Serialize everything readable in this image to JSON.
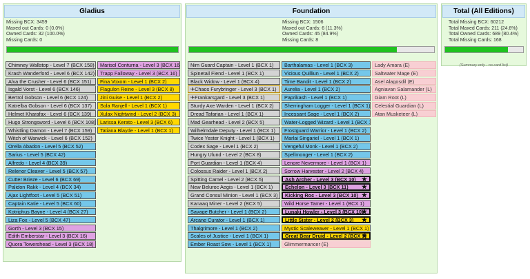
{
  "gladius": {
    "title": "Gladius",
    "stats": [
      "Missing BCX: 3459",
      "Maxed out Cards: 0 (0.0%)",
      "Owned Cards: 32 (100.0%)",
      "Missing Cards: 0"
    ],
    "progress": 1.0,
    "col1": [
      {
        "label": "Chimney Wallstop - Level 7 (BCX 158)",
        "c": "gray"
      },
      {
        "label": "Krash Wanderford - Level 6 (BCX 142)",
        "c": "gray"
      },
      {
        "label": "Alva the Crusher - Level 6 (BCX 151)",
        "c": "gray"
      },
      {
        "label": "Isgald Vorst - Level 6 (BCX 146)",
        "c": "gray"
      },
      {
        "label": "Bertrol Gobson - Level 6 (BCX 124)",
        "c": "gray"
      },
      {
        "label": "Katrelba Gobson - Level 6 (BCX 137)",
        "c": "gray"
      },
      {
        "label": "Helmet Kharafax - Level 6 (BCX 139)",
        "c": "gray"
      },
      {
        "label": "Hugo Strongsword - Level 6 (BCX 108)",
        "c": "gray"
      },
      {
        "label": "Whistling Damon - Level 7 (BCX 159)",
        "c": "gray"
      },
      {
        "label": "Witch of Warwick - Level 6 (BCX 152)",
        "c": "gray"
      },
      {
        "label": "Orella Abadon - Level 5 (BCX 52)",
        "c": "blue"
      },
      {
        "label": "Sarius - Level 5 (BCX 42)",
        "c": "blue"
      },
      {
        "label": "Alfredo - Level 4 (BCX 39)",
        "c": "blue"
      },
      {
        "label": "Relenor Cleaver - Level 5 (BCX 57)",
        "c": "blue"
      },
      {
        "label": "Cutter Brieze - Level 6 (BCX 69)",
        "c": "blue"
      },
      {
        "label": "Palidon Rakk - Level 4 (BCX 34)",
        "c": "blue"
      },
      {
        "label": "Ajax Lightfoot - Level 5 (BCX 51)",
        "c": "blue"
      },
      {
        "label": "Captain Katie - Level 5 (BCX 60)",
        "c": "blue"
      },
      {
        "label": "Kotriphus Bayne - Level 4 (BCX 27)",
        "c": "blue"
      },
      {
        "label": "Liza Fox - Level 5 (BCX 47)",
        "c": "blue"
      },
      {
        "label": "Gorth - Level 3 (BCX 15)",
        "c": "pink"
      },
      {
        "label": "Edith Emberstar - Level 3 (BCX 16)",
        "c": "pink"
      },
      {
        "label": "Quora Towershead - Level 3 (BCX 18)",
        "c": "pink"
      }
    ],
    "col2": [
      {
        "label": "Marisol Conturna - Level 3 (BCX 16)",
        "c": "pink"
      },
      {
        "label": "Trapp Falloway - Level 3 (BCX 16)",
        "c": "pink"
      },
      {
        "label": "Fina Voxom - Level 1 (BCX 2)",
        "c": "yellow"
      },
      {
        "label": "Flagulon Reine - Level 3 (BCX 8)",
        "c": "yellow"
      },
      {
        "label": "Jini Guise - Level 1 (BCX 2)",
        "c": "yellow"
      },
      {
        "label": "Sola Ranjell - Level 1 (BCX 1)",
        "c": "yellow"
      },
      {
        "label": "Xulax Nightwind - Level 2 (BCX 3)",
        "c": "yellow"
      },
      {
        "label": "Larissa Kerato - Level 3 (BCX 6)",
        "c": "yellow"
      },
      {
        "label": "Tatiana Blayde - Level 1 (BCX 1)",
        "c": "yellow"
      }
    ]
  },
  "foundation": {
    "title": "Foundation",
    "stats": [
      "Missing BCX: 1506",
      "Maxed out Cards: 6 (11.3%)",
      "Owned Cards: 45 (84.9%)",
      "Missing Cards: 8"
    ],
    "progress": 0.849,
    "col1": [
      {
        "label": "Nim Guard Captain - Level 1 (BCX 1)",
        "c": "gray"
      },
      {
        "label": "Spinetail Fiend - Level 1 (BCX 1)",
        "c": "gray"
      },
      {
        "label": "Black Widow - Level 1 (BCX 4)",
        "c": "gray"
      },
      {
        "label": "Chaos Furybringer - Level 3 (BCX 1)",
        "c": "gray",
        "icon": "✈",
        "gold": true
      },
      {
        "label": "Frankarsgard - Level 3 (BCX 1)",
        "c": "gray",
        "icon": "✈",
        "gold": true
      },
      {
        "label": "Sturdy Axe Warden - Level 1 (BCX 2)",
        "c": "gray"
      },
      {
        "label": "Dread Tafarian - Level 1 (BCX 1)",
        "c": "gray"
      },
      {
        "label": "Mad Gearhead - Level 2 (BCX 5)",
        "c": "gray"
      },
      {
        "label": "Wilhelmdale Deputy - Level 1 (BCX 1)",
        "c": "gray"
      },
      {
        "label": "Twice Yester Knight - Level 1 (BCX 1)",
        "c": "gray"
      },
      {
        "label": "Codex Sage - Level 1 (BCX 2)",
        "c": "gray"
      },
      {
        "label": "Hungry Ulund - Level 2 (BCX 8)",
        "c": "gray"
      },
      {
        "label": "Port Guardian - Level 1 (BCX 4)",
        "c": "gray"
      },
      {
        "label": "Colossus Raider - Level 1 (BCX 2)",
        "c": "gray"
      },
      {
        "label": "Spitting Camel - Level 2 (BCX 5)",
        "c": "gray"
      },
      {
        "label": "New Beluroc Aegis - Level 1 (BCX 1)",
        "c": "gray"
      },
      {
        "label": "Grand Consul Minion - Level 1 (BCX 3)",
        "c": "gray"
      },
      {
        "label": "Kanaaq Miner - Level 2 (BCX 5)",
        "c": "gray"
      },
      {
        "label": "Savage Butcher - Level 1 (BCX 2)",
        "c": "blue"
      },
      {
        "label": "Arcane Curator - Level 1 (BCX 1)",
        "c": "blue"
      },
      {
        "label": "Thalgrimore - Level 1 (BCX 2)",
        "c": "blue"
      },
      {
        "label": "Scales of Justice - Level 1 (BCX 1)",
        "c": "blue"
      },
      {
        "label": "Ember Roast Sow - Level 1 (BCX 1)",
        "c": "blue"
      }
    ],
    "col2": [
      {
        "label": "Barthalamas - Level 1 (BCX 3)",
        "c": "blue"
      },
      {
        "label": "Vicious Quilliun - Level 1 (BCX 2)",
        "c": "blue"
      },
      {
        "label": "Time Bandit - Level 1 (BCX 2)",
        "c": "blue"
      },
      {
        "label": "Aurelia - Level 1 (BCX 2)",
        "c": "blue"
      },
      {
        "label": "Paprikash - Level 1 (BCX 1)",
        "c": "blue"
      },
      {
        "label": "Sherringham Logger - Level 1 (BCX 1)",
        "c": "blue"
      },
      {
        "label": "Incessant Sage - Level 1 (BCX 2)",
        "c": "blue"
      },
      {
        "label": "Water-Logged Wizard - Level 1 (BCX 1)",
        "c": "blue"
      },
      {
        "label": "Frostguard Warrior - Level 1 (BCX 2)",
        "c": "blue"
      },
      {
        "label": "Marlai Singariel - Level 1 (BCX 1)",
        "c": "blue"
      },
      {
        "label": "Vengeful Monk - Level 1 (BCX 2)",
        "c": "blue"
      },
      {
        "label": "Spellmonger - Level 1 (BCX 2)",
        "c": "blue"
      },
      {
        "label": "Lenore Nevermore - Level 1 (BCX 1)",
        "c": "pink"
      },
      {
        "label": "Sorrow Harvester - Level 2 (BCX 4)",
        "c": "pink"
      },
      {
        "label": "Ash Archer - Level 3 (BCX 10)",
        "c": "pink",
        "bold": true,
        "star": "★"
      },
      {
        "label": "Echelon - Level 3 (BCX 11)",
        "c": "pink",
        "bold": true,
        "star": "★"
      },
      {
        "label": "Kicking Roc - Level 3 (BCX 10)",
        "c": "pink",
        "bold": true,
        "star": "★"
      },
      {
        "label": "Wild Horse Tamer - Level 1 (BCX 1)",
        "c": "pink"
      },
      {
        "label": "Lunaki Howler - Level 3 (BCX 10)",
        "c": "pink",
        "bold": true,
        "star": "★"
      },
      {
        "label": "Little Sister - Level 2 (BCX 3)",
        "c": "yellow",
        "bold": true,
        "star": "★"
      },
      {
        "label": "Mystic Scaleweaver - Level 1 (BCX 1)",
        "c": "yellow"
      },
      {
        "label": "Great Bear Druid - Level 2 (BCX 3)",
        "c": "yellow",
        "bold": true,
        "star": "★"
      },
      {
        "label": "Glimmermancer (E)",
        "c": "ltpink"
      }
    ],
    "col3": [
      {
        "label": "Lady Amara (E)",
        "c": "ltpink"
      },
      {
        "label": "Saltwater Mage (E)",
        "c": "ltpink"
      },
      {
        "label": "Asel Alagosdil (E)",
        "c": "ltpink"
      },
      {
        "label": "Agniavan Salamander (L)",
        "c": "ltpink"
      },
      {
        "label": "Giam Root (L)",
        "c": "ltpink"
      },
      {
        "label": "Celestial Guardian (L)",
        "c": "ltpink"
      },
      {
        "label": "Atan Musketeer (L)",
        "c": "ltpink"
      }
    ]
  },
  "total": {
    "title": "Total (All Editions)",
    "stats": [
      "Total Missing BCX: 60212",
      "Total Maxed Cards: 211 (24.6%)",
      "Total Owned Cards: 689 (80.4%)",
      "Total Missing Cards: 168"
    ],
    "progress": 0.804,
    "note": "(Summary only - no card list)"
  }
}
